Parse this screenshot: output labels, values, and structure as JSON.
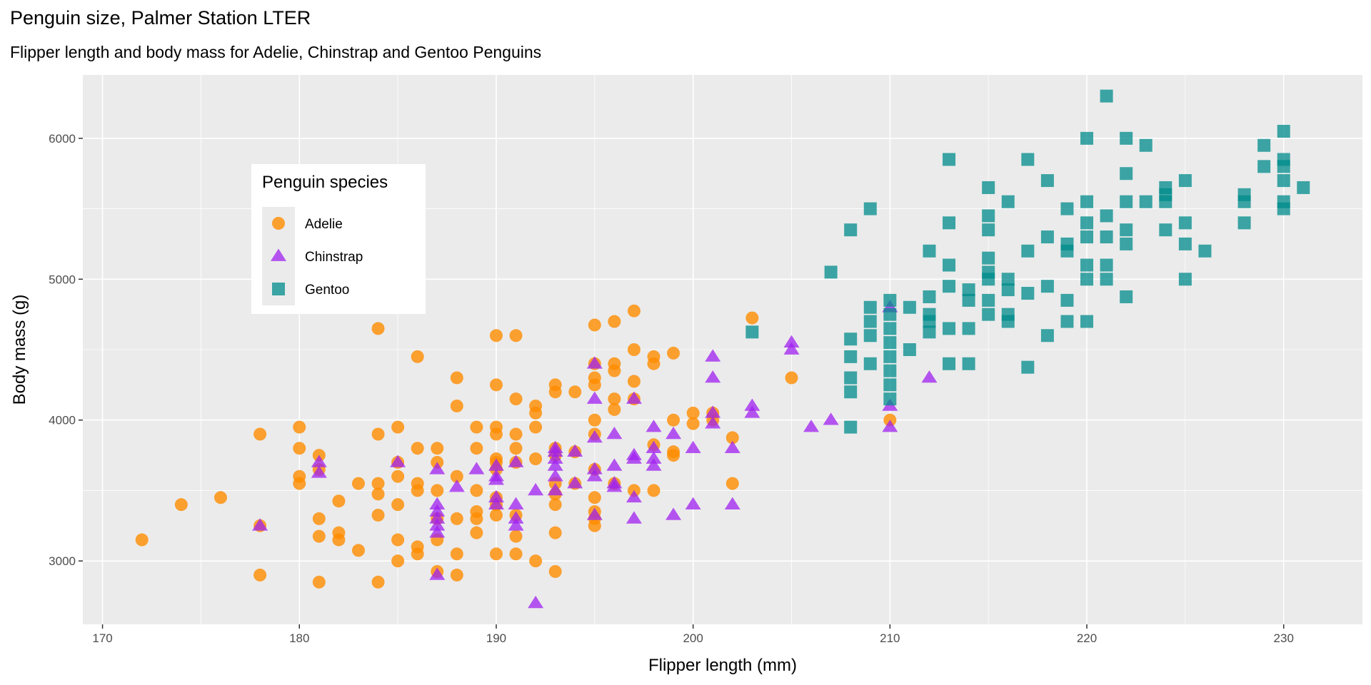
{
  "colors": {
    "Adelie": "#ff8c00",
    "Chinstrap": "#a020f0",
    "Gentoo": "#008b8b",
    "panel": "#ebebeb",
    "grid": "#ffffff"
  },
  "chart_data": {
    "type": "scatter",
    "title": "Penguin size, Palmer Station LTER",
    "subtitle": "Flipper length and body mass for Adelie, Chinstrap and Gentoo Penguins",
    "xlabel": "Flipper length (mm)",
    "ylabel": "Body mass (g)",
    "xlim": [
      169,
      234
    ],
    "ylim": [
      2550,
      6450
    ],
    "xticks": [
      170,
      180,
      190,
      200,
      210,
      220,
      230
    ],
    "yticks": [
      3000,
      4000,
      5000,
      6000
    ],
    "grid": true,
    "legend": {
      "title": "Penguin species",
      "placement": "inside-top-left",
      "entries": [
        "Adelie",
        "Chinstrap",
        "Gentoo"
      ]
    },
    "series": [
      {
        "name": "Adelie",
        "shape": "circle",
        "points": [
          [
            172,
            3150
          ],
          [
            174,
            3400
          ],
          [
            176,
            3450
          ],
          [
            178,
            3900
          ],
          [
            178,
            3250
          ],
          [
            178,
            2900
          ],
          [
            180,
            3950
          ],
          [
            180,
            3800
          ],
          [
            180,
            3600
          ],
          [
            180,
            3550
          ],
          [
            181,
            3750
          ],
          [
            181,
            3650
          ],
          [
            181,
            3300
          ],
          [
            181,
            3175
          ],
          [
            181,
            2850
          ],
          [
            182,
            3425
          ],
          [
            182,
            3200
          ],
          [
            182,
            3150
          ],
          [
            183,
            3550
          ],
          [
            183,
            3075
          ],
          [
            184,
            4650
          ],
          [
            184,
            3900
          ],
          [
            184,
            3550
          ],
          [
            184,
            3475
          ],
          [
            184,
            3325
          ],
          [
            184,
            2850
          ],
          [
            185,
            3950
          ],
          [
            185,
            3700
          ],
          [
            185,
            3600
          ],
          [
            185,
            3400
          ],
          [
            185,
            3150
          ],
          [
            185,
            3000
          ],
          [
            186,
            4450
          ],
          [
            186,
            3800
          ],
          [
            186,
            3550
          ],
          [
            186,
            3500
          ],
          [
            186,
            3100
          ],
          [
            186,
            3050
          ],
          [
            187,
            3800
          ],
          [
            187,
            3700
          ],
          [
            187,
            3500
          ],
          [
            187,
            3300
          ],
          [
            187,
            3150
          ],
          [
            187,
            2925
          ],
          [
            188,
            4300
          ],
          [
            188,
            4100
          ],
          [
            188,
            3600
          ],
          [
            188,
            3300
          ],
          [
            188,
            3050
          ],
          [
            188,
            2900
          ],
          [
            189,
            3950
          ],
          [
            189,
            3800
          ],
          [
            189,
            3500
          ],
          [
            189,
            3350
          ],
          [
            189,
            3300
          ],
          [
            189,
            3200
          ],
          [
            190,
            4600
          ],
          [
            190,
            4250
          ],
          [
            190,
            3950
          ],
          [
            190,
            3900
          ],
          [
            190,
            3725
          ],
          [
            190,
            3700
          ],
          [
            190,
            3650
          ],
          [
            190,
            3450
          ],
          [
            190,
            3400
          ],
          [
            190,
            3325
          ],
          [
            190,
            3050
          ],
          [
            191,
            4600
          ],
          [
            191,
            4150
          ],
          [
            191,
            3900
          ],
          [
            191,
            3800
          ],
          [
            191,
            3700
          ],
          [
            191,
            3325
          ],
          [
            191,
            3175
          ],
          [
            191,
            3050
          ],
          [
            192,
            4100
          ],
          [
            192,
            4050
          ],
          [
            192,
            3950
          ],
          [
            192,
            3725
          ],
          [
            192,
            3000
          ],
          [
            193,
            4250
          ],
          [
            193,
            4200
          ],
          [
            193,
            3800
          ],
          [
            193,
            3750
          ],
          [
            193,
            3550
          ],
          [
            193,
            3475
          ],
          [
            193,
            3400
          ],
          [
            193,
            3200
          ],
          [
            193,
            2925
          ],
          [
            194,
            4200
          ],
          [
            194,
            3775
          ],
          [
            194,
            3550
          ],
          [
            195,
            4675
          ],
          [
            195,
            4400
          ],
          [
            195,
            4300
          ],
          [
            195,
            4250
          ],
          [
            195,
            4000
          ],
          [
            195,
            3900
          ],
          [
            195,
            3650
          ],
          [
            195,
            3450
          ],
          [
            195,
            3350
          ],
          [
            195,
            3300
          ],
          [
            195,
            3250
          ],
          [
            196,
            4700
          ],
          [
            196,
            4400
          ],
          [
            196,
            4350
          ],
          [
            196,
            4150
          ],
          [
            196,
            4075
          ],
          [
            196,
            3550
          ],
          [
            197,
            4775
          ],
          [
            197,
            4500
          ],
          [
            197,
            4275
          ],
          [
            197,
            4150
          ],
          [
            197,
            3500
          ],
          [
            198,
            4450
          ],
          [
            198,
            4400
          ],
          [
            198,
            3825
          ],
          [
            198,
            3500
          ],
          [
            199,
            4475
          ],
          [
            199,
            4000
          ],
          [
            199,
            3775
          ],
          [
            199,
            3750
          ],
          [
            200,
            4050
          ],
          [
            200,
            3975
          ],
          [
            201,
            4050
          ],
          [
            201,
            4000
          ],
          [
            202,
            3875
          ],
          [
            202,
            3550
          ],
          [
            203,
            4725
          ],
          [
            205,
            4300
          ],
          [
            210,
            4000
          ]
        ]
      },
      {
        "name": "Chinstrap",
        "shape": "triangle",
        "points": [
          [
            178,
            3250
          ],
          [
            181,
            3700
          ],
          [
            181,
            3625
          ],
          [
            185,
            3700
          ],
          [
            187,
            3650
          ],
          [
            187,
            3400
          ],
          [
            187,
            3350
          ],
          [
            187,
            3300
          ],
          [
            187,
            3250
          ],
          [
            187,
            3200
          ],
          [
            187,
            2900
          ],
          [
            188,
            3525
          ],
          [
            189,
            3650
          ],
          [
            190,
            3675
          ],
          [
            190,
            3600
          ],
          [
            190,
            3575
          ],
          [
            190,
            3450
          ],
          [
            190,
            3400
          ],
          [
            191,
            3700
          ],
          [
            191,
            3400
          ],
          [
            191,
            3300
          ],
          [
            191,
            3250
          ],
          [
            192,
            3500
          ],
          [
            192,
            2700
          ],
          [
            193,
            3800
          ],
          [
            193,
            3775
          ],
          [
            193,
            3725
          ],
          [
            193,
            3675
          ],
          [
            193,
            3600
          ],
          [
            193,
            3500
          ],
          [
            194,
            3775
          ],
          [
            194,
            3550
          ],
          [
            195,
            4400
          ],
          [
            195,
            4150
          ],
          [
            195,
            3875
          ],
          [
            195,
            3650
          ],
          [
            195,
            3600
          ],
          [
            195,
            3325
          ],
          [
            196,
            3900
          ],
          [
            196,
            3675
          ],
          [
            196,
            3550
          ],
          [
            196,
            3525
          ],
          [
            197,
            4150
          ],
          [
            197,
            3750
          ],
          [
            197,
            3725
          ],
          [
            197,
            3450
          ],
          [
            197,
            3300
          ],
          [
            198,
            3950
          ],
          [
            198,
            3800
          ],
          [
            198,
            3725
          ],
          [
            198,
            3675
          ],
          [
            199,
            3900
          ],
          [
            199,
            3325
          ],
          [
            200,
            3800
          ],
          [
            200,
            3400
          ],
          [
            201,
            4450
          ],
          [
            201,
            4300
          ],
          [
            201,
            4050
          ],
          [
            201,
            3975
          ],
          [
            202,
            3800
          ],
          [
            202,
            3400
          ],
          [
            203,
            4100
          ],
          [
            203,
            4050
          ],
          [
            205,
            4550
          ],
          [
            205,
            4500
          ],
          [
            206,
            3950
          ],
          [
            207,
            4000
          ],
          [
            210,
            4800
          ],
          [
            210,
            4100
          ],
          [
            210,
            3950
          ],
          [
            212,
            4300
          ]
        ]
      },
      {
        "name": "Gentoo",
        "shape": "square",
        "points": [
          [
            203,
            4625
          ],
          [
            207,
            5050
          ],
          [
            208,
            5350
          ],
          [
            208,
            4575
          ],
          [
            208,
            4450
          ],
          [
            208,
            4300
          ],
          [
            208,
            4200
          ],
          [
            208,
            3950
          ],
          [
            209,
            5500
          ],
          [
            209,
            4800
          ],
          [
            209,
            4700
          ],
          [
            209,
            4600
          ],
          [
            209,
            4400
          ],
          [
            210,
            4850
          ],
          [
            210,
            4750
          ],
          [
            210,
            4650
          ],
          [
            210,
            4550
          ],
          [
            210,
            4450
          ],
          [
            210,
            4350
          ],
          [
            210,
            4250
          ],
          [
            210,
            4150
          ],
          [
            211,
            4800
          ],
          [
            211,
            4500
          ],
          [
            212,
            5200
          ],
          [
            212,
            4875
          ],
          [
            212,
            4750
          ],
          [
            212,
            4700
          ],
          [
            212,
            4625
          ],
          [
            213,
            5850
          ],
          [
            213,
            5400
          ],
          [
            213,
            5100
          ],
          [
            213,
            4950
          ],
          [
            213,
            4650
          ],
          [
            213,
            4400
          ],
          [
            214,
            4925
          ],
          [
            214,
            4850
          ],
          [
            214,
            4650
          ],
          [
            214,
            4400
          ],
          [
            215,
            5650
          ],
          [
            215,
            5450
          ],
          [
            215,
            5350
          ],
          [
            215,
            5150
          ],
          [
            215,
            5050
          ],
          [
            215,
            5000
          ],
          [
            215,
            4850
          ],
          [
            215,
            4750
          ],
          [
            216,
            5550
          ],
          [
            216,
            5000
          ],
          [
            216,
            4925
          ],
          [
            216,
            4750
          ],
          [
            216,
            4700
          ],
          [
            217,
            5850
          ],
          [
            217,
            5200
          ],
          [
            217,
            4900
          ],
          [
            217,
            4375
          ],
          [
            218,
            5700
          ],
          [
            218,
            5300
          ],
          [
            218,
            4950
          ],
          [
            218,
            4600
          ],
          [
            219,
            5500
          ],
          [
            219,
            5250
          ],
          [
            219,
            5200
          ],
          [
            219,
            4850
          ],
          [
            219,
            4700
          ],
          [
            220,
            6000
          ],
          [
            220,
            5550
          ],
          [
            220,
            5400
          ],
          [
            220,
            5300
          ],
          [
            220,
            5100
          ],
          [
            220,
            5000
          ],
          [
            220,
            4700
          ],
          [
            221,
            6300
          ],
          [
            221,
            5450
          ],
          [
            221,
            5300
          ],
          [
            221,
            5100
          ],
          [
            221,
            5000
          ],
          [
            222,
            6000
          ],
          [
            222,
            5750
          ],
          [
            222,
            5550
          ],
          [
            222,
            5350
          ],
          [
            222,
            5250
          ],
          [
            222,
            4875
          ],
          [
            223,
            5950
          ],
          [
            223,
            5550
          ],
          [
            224,
            5650
          ],
          [
            224,
            5600
          ],
          [
            224,
            5550
          ],
          [
            224,
            5350
          ],
          [
            225,
            5700
          ],
          [
            225,
            5400
          ],
          [
            225,
            5250
          ],
          [
            225,
            5000
          ],
          [
            226,
            5200
          ],
          [
            228,
            5600
          ],
          [
            228,
            5550
          ],
          [
            228,
            5400
          ],
          [
            229,
            5950
          ],
          [
            229,
            5800
          ],
          [
            230,
            6050
          ],
          [
            230,
            5850
          ],
          [
            230,
            5800
          ],
          [
            230,
            5700
          ],
          [
            230,
            5550
          ],
          [
            230,
            5500
          ],
          [
            231,
            5650
          ]
        ]
      }
    ]
  }
}
